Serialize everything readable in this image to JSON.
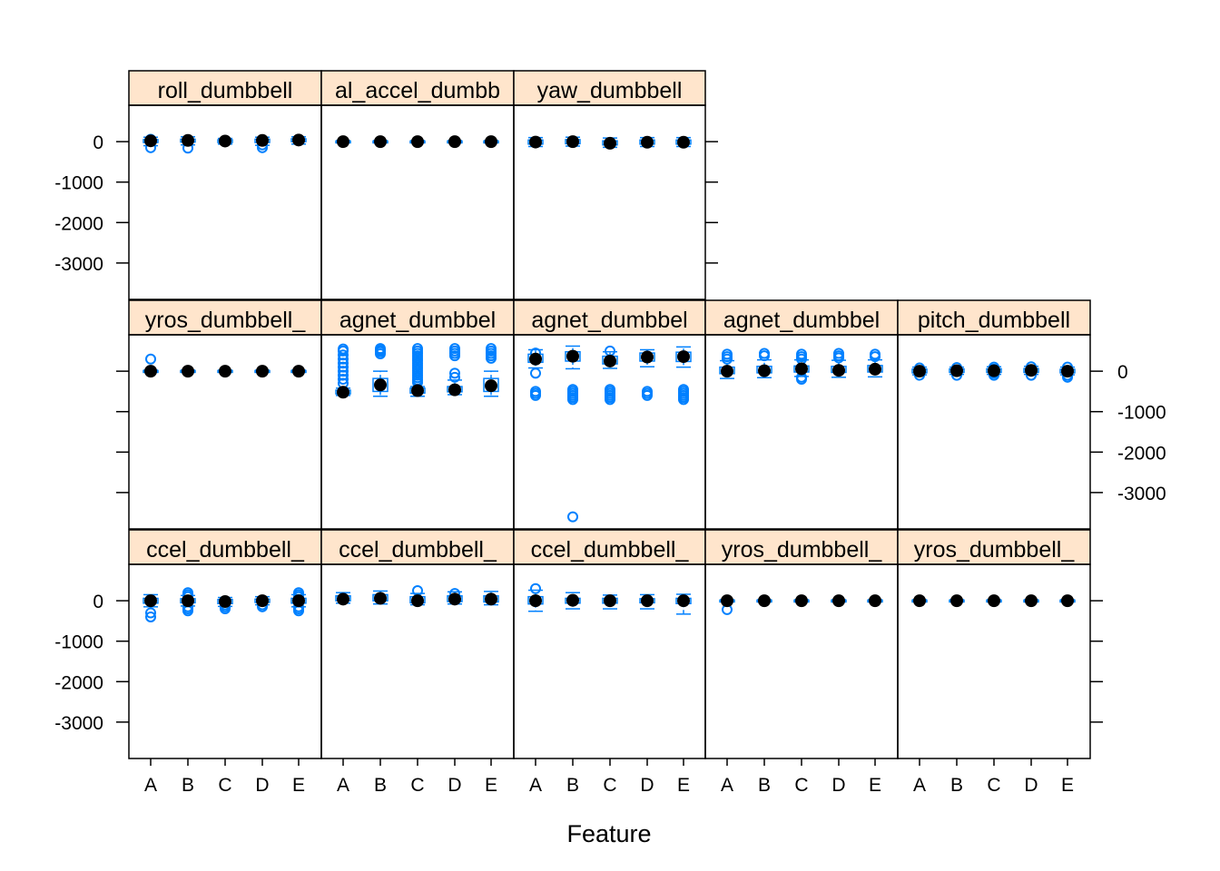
{
  "chart_data": {
    "type": "boxplot",
    "title": "",
    "xlabel": "Feature",
    "ylabel": "",
    "categories": [
      "A",
      "B",
      "C",
      "D",
      "E"
    ],
    "yticks": [
      0,
      -1000,
      -2000,
      -3000
    ],
    "ylim": [
      -3900,
      900
    ],
    "colors": {
      "box": "#0080ff",
      "median_dot": "#000000",
      "strip_fill": "#ffe5cc",
      "frame": "#000000"
    },
    "panels": [
      {
        "label": "roll_dumbbell",
        "row": 1,
        "col": 1,
        "medians": [
          20,
          30,
          15,
          30,
          40
        ],
        "boxes": [
          [
            -20,
            50
          ],
          [
            -10,
            60
          ],
          [
            -20,
            45
          ],
          [
            -20,
            60
          ],
          [
            0,
            70
          ]
        ],
        "whiskers": [
          [
            -100,
            110
          ],
          [
            -80,
            120
          ],
          [
            -60,
            80
          ],
          [
            -90,
            110
          ],
          [
            -60,
            120
          ]
        ],
        "outliers": [
          [
            -150,
            60
          ],
          [
            -160
          ],
          [],
          [
            -150,
            -80
          ],
          []
        ]
      },
      {
        "label": "al_accel_dumbb",
        "row": 1,
        "col": 2,
        "medians": [
          0,
          0,
          0,
          0,
          0
        ],
        "boxes": [
          [
            -15,
            15
          ],
          [
            -15,
            15
          ],
          [
            -15,
            15
          ],
          [
            -15,
            15
          ],
          [
            -15,
            15
          ]
        ],
        "whiskers": [
          [
            -25,
            25
          ],
          [
            -25,
            25
          ],
          [
            -25,
            25
          ],
          [
            -25,
            25
          ],
          [
            -25,
            25
          ]
        ],
        "outliers": [
          [],
          [],
          [],
          [],
          []
        ]
      },
      {
        "label": "yaw_dumbbell",
        "row": 1,
        "col": 3,
        "medians": [
          -10,
          0,
          -40,
          -15,
          -15
        ],
        "boxes": [
          [
            -60,
            40
          ],
          [
            -50,
            50
          ],
          [
            -80,
            20
          ],
          [
            -60,
            40
          ],
          [
            -60,
            40
          ]
        ],
        "whiskers": [
          [
            -120,
            100
          ],
          [
            -110,
            110
          ],
          [
            -140,
            90
          ],
          [
            -120,
            100
          ],
          [
            -120,
            100
          ]
        ],
        "outliers": [
          [],
          [],
          [],
          [],
          []
        ]
      },
      {
        "label": "yros_dumbbell_",
        "row": 2,
        "col": 1,
        "medians": [
          0,
          0,
          0,
          0,
          0
        ],
        "boxes": [
          [
            -15,
            15
          ],
          [
            -15,
            15
          ],
          [
            -15,
            15
          ],
          [
            -15,
            15
          ],
          [
            -15,
            15
          ]
        ],
        "whiskers": [
          [
            -25,
            25
          ],
          [
            -25,
            25
          ],
          [
            -25,
            25
          ],
          [
            -25,
            25
          ],
          [
            -25,
            25
          ]
        ],
        "outliers": [
          [
            300
          ],
          [],
          [],
          [],
          []
        ]
      },
      {
        "label": "agnet_dumbbel",
        "row": 2,
        "col": 2,
        "medians": [
          -520,
          -340,
          -480,
          -460,
          -360
        ],
        "boxes": [
          [
            -560,
            -470
          ],
          [
            -500,
            -180
          ],
          [
            -540,
            -420
          ],
          [
            -510,
            -380
          ],
          [
            -500,
            -180
          ]
        ],
        "whiskers": [
          [
            -600,
            -420
          ],
          [
            -620,
            0
          ],
          [
            -620,
            -380
          ],
          [
            -580,
            -220
          ],
          [
            -620,
            0
          ]
        ],
        "outliers": [
          [
            550,
            500,
            400,
            300,
            200,
            100,
            0,
            -100,
            -200,
            -300
          ],
          [
            560,
            520,
            480,
            430
          ],
          [
            560,
            500,
            440,
            380,
            320,
            260,
            200,
            140,
            80,
            20,
            -40,
            -100,
            -160,
            -220,
            -280
          ],
          [
            560,
            500,
            440,
            380,
            -50,
            -150
          ],
          [
            560,
            500,
            440,
            380,
            320
          ]
        ]
      },
      {
        "label": "agnet_dumbbel",
        "row": 2,
        "col": 3,
        "medians": [
          300,
          370,
          250,
          350,
          360
        ],
        "boxes": [
          [
            220,
            420
          ],
          [
            250,
            480
          ],
          [
            180,
            370
          ],
          [
            250,
            450
          ],
          [
            240,
            470
          ]
        ],
        "whiskers": [
          [
            80,
            530
          ],
          [
            60,
            620
          ],
          [
            70,
            480
          ],
          [
            110,
            530
          ],
          [
            100,
            600
          ]
        ],
        "outliers": [
          [
            450,
            -50,
            -500,
            -550,
            -600
          ],
          [
            -450,
            -500,
            -550,
            -600,
            -650,
            -700,
            -3600
          ],
          [
            500,
            -450,
            -500,
            -550,
            -600,
            -650,
            -700
          ],
          [
            -500,
            -550,
            -600
          ],
          [
            -450,
            -500,
            -550,
            -600,
            -650,
            -700
          ]
        ]
      },
      {
        "label": "agnet_dumbbel",
        "row": 2,
        "col": 4,
        "medians": [
          0,
          10,
          60,
          20,
          50
        ],
        "boxes": [
          [
            -60,
            100
          ],
          [
            -40,
            120
          ],
          [
            -20,
            130
          ],
          [
            -30,
            120
          ],
          [
            -20,
            140
          ]
        ],
        "whiskers": [
          [
            -180,
            260
          ],
          [
            -160,
            280
          ],
          [
            -130,
            280
          ],
          [
            -150,
            270
          ],
          [
            -140,
            280
          ]
        ],
        "outliers": [
          [
            420,
            360,
            300
          ],
          [
            440,
            380
          ],
          [
            420,
            360,
            300,
            -150,
            -200
          ],
          [
            440,
            380,
            330
          ],
          [
            420,
            360
          ]
        ]
      },
      {
        "label": "pitch_dumbbell",
        "row": 2,
        "col": 5,
        "medians": [
          0,
          10,
          10,
          20,
          0
        ],
        "boxes": [
          [
            -40,
            50
          ],
          [
            -30,
            55
          ],
          [
            -30,
            60
          ],
          [
            -30,
            65
          ],
          [
            -40,
            45
          ]
        ],
        "whiskers": [
          [
            -90,
            100
          ],
          [
            -80,
            100
          ],
          [
            -80,
            110
          ],
          [
            -80,
            120
          ],
          [
            -90,
            100
          ]
        ],
        "outliers": [
          [
            80,
            -100
          ],
          [
            90,
            -100
          ],
          [
            100,
            50,
            -50,
            -100
          ],
          [
            110,
            -100
          ],
          [
            100,
            -100,
            -150
          ]
        ]
      },
      {
        "label": "ccel_dumbbell_",
        "row": 3,
        "col": 1,
        "medians": [
          0,
          0,
          -20,
          0,
          0
        ],
        "boxes": [
          [
            -60,
            60
          ],
          [
            -50,
            50
          ],
          [
            -70,
            30
          ],
          [
            -40,
            40
          ],
          [
            -60,
            60
          ]
        ],
        "whiskers": [
          [
            -150,
            150
          ],
          [
            -130,
            130
          ],
          [
            -140,
            80
          ],
          [
            -100,
            100
          ],
          [
            -150,
            150
          ]
        ],
        "outliers": [
          [
            -400,
            -300
          ],
          [
            200,
            150,
            100,
            -150,
            -200,
            -250
          ],
          [
            -100,
            -150,
            -200
          ],
          [
            -100,
            -150
          ],
          [
            200,
            150,
            100,
            -150,
            -200,
            -250
          ]
        ]
      },
      {
        "label": "ccel_dumbbell_",
        "row": 3,
        "col": 2,
        "medians": [
          40,
          60,
          0,
          40,
          40
        ],
        "boxes": [
          [
            0,
            120
          ],
          [
            0,
            150
          ],
          [
            -50,
            100
          ],
          [
            -20,
            120
          ],
          [
            -30,
            120
          ]
        ],
        "whiskers": [
          [
            -60,
            200
          ],
          [
            -80,
            240
          ],
          [
            -100,
            180
          ],
          [
            -80,
            220
          ],
          [
            -100,
            230
          ]
        ],
        "outliers": [
          [],
          [],
          [
            250
          ],
          [
            180
          ],
          []
        ]
      },
      {
        "label": "ccel_dumbbell_",
        "row": 3,
        "col": 3,
        "medians": [
          0,
          10,
          0,
          0,
          0
        ],
        "boxes": [
          [
            -80,
            100
          ],
          [
            -60,
            60
          ],
          [
            -60,
            60
          ],
          [
            -50,
            50
          ],
          [
            -70,
            60
          ]
        ],
        "whiskers": [
          [
            -260,
            260
          ],
          [
            -200,
            200
          ],
          [
            -200,
            140
          ],
          [
            -200,
            150
          ],
          [
            -330,
            160
          ]
        ],
        "outliers": [
          [
            300
          ],
          [],
          [],
          [],
          []
        ]
      },
      {
        "label": "yros_dumbbell_",
        "row": 3,
        "col": 4,
        "medians": [
          0,
          0,
          0,
          0,
          0
        ],
        "boxes": [
          [
            -15,
            15
          ],
          [
            -15,
            15
          ],
          [
            -15,
            15
          ],
          [
            -15,
            15
          ],
          [
            -15,
            15
          ]
        ],
        "whiskers": [
          [
            -25,
            25
          ],
          [
            -25,
            25
          ],
          [
            -25,
            25
          ],
          [
            -25,
            25
          ],
          [
            -25,
            25
          ]
        ],
        "outliers": [
          [
            -220
          ],
          [],
          [],
          [],
          []
        ]
      },
      {
        "label": "yros_dumbbell_",
        "row": 3,
        "col": 5,
        "medians": [
          0,
          0,
          0,
          0,
          0
        ],
        "boxes": [
          [
            -15,
            15
          ],
          [
            -15,
            15
          ],
          [
            -15,
            15
          ],
          [
            -15,
            15
          ],
          [
            -15,
            15
          ]
        ],
        "whiskers": [
          [
            -25,
            25
          ],
          [
            -25,
            25
          ],
          [
            -25,
            25
          ],
          [
            -25,
            25
          ],
          [
            -25,
            25
          ]
        ],
        "outliers": [
          [],
          [],
          [],
          [],
          []
        ]
      }
    ]
  }
}
